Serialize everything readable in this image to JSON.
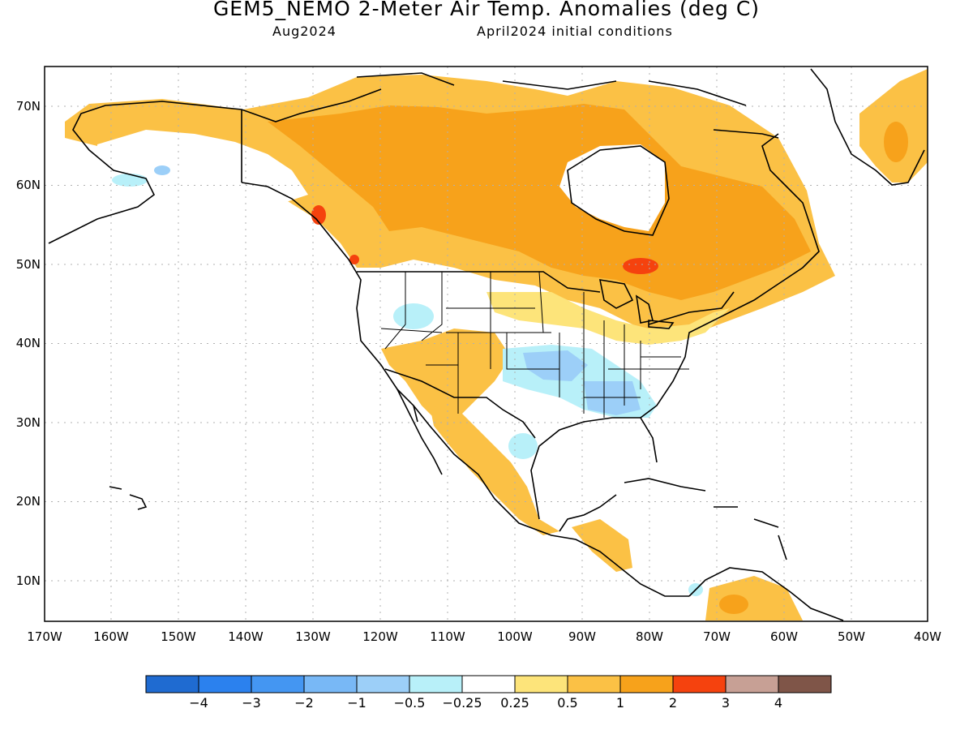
{
  "title": "GEM5_NEMO 2-Meter Air Temp. Anomalies (deg C)",
  "subtitle_left": "Aug2024",
  "subtitle_right": "April2024 initial conditions",
  "lat_labels": [
    "70N",
    "60N",
    "50N",
    "40N",
    "30N",
    "20N",
    "10N"
  ],
  "lon_labels": [
    "170W",
    "160W",
    "150W",
    "140W",
    "130W",
    "120W",
    "110W",
    "100W",
    "90W",
    "80W",
    "70W",
    "60W",
    "50W",
    "40W"
  ],
  "colorbar": {
    "colors": [
      "#1f6bd1",
      "#2b81ee",
      "#4496f2",
      "#78b8f6",
      "#9ccff8",
      "#b8f0f9",
      "#ffffff",
      "#fde47a",
      "#fbc145",
      "#f7a21b",
      "#f5420e",
      "#c7a095",
      "#7f5548"
    ],
    "labels": [
      "−4",
      "−3",
      "−2",
      "−1",
      "−0.5",
      "−0.25",
      "0.25",
      "0.5",
      "1",
      "2",
      "3",
      "4"
    ]
  }
}
